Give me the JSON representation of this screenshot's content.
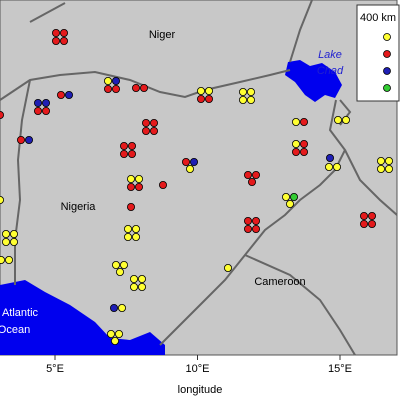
{
  "map": {
    "countries": {
      "niger": "Niger",
      "nigeria": "Nigeria",
      "cameroon": "Cameroon"
    },
    "water": {
      "lake_chad": [
        "Lake",
        "Chad"
      ],
      "ocean": [
        "Atlantic",
        "Ocean"
      ]
    },
    "legend": {
      "title": "400 km",
      "colors": [
        "#ffff33",
        "#e41a1c",
        "#1f1fb4",
        "#33cc33"
      ]
    },
    "x_axis": {
      "label": "longitude",
      "xlim": [
        3.07,
        17.0
      ],
      "ticks": [
        {
          "value": 5,
          "label": "5°E"
        },
        {
          "value": 10,
          "label": "10°E"
        },
        {
          "value": 15,
          "label": "15°E"
        }
      ]
    }
  }
}
